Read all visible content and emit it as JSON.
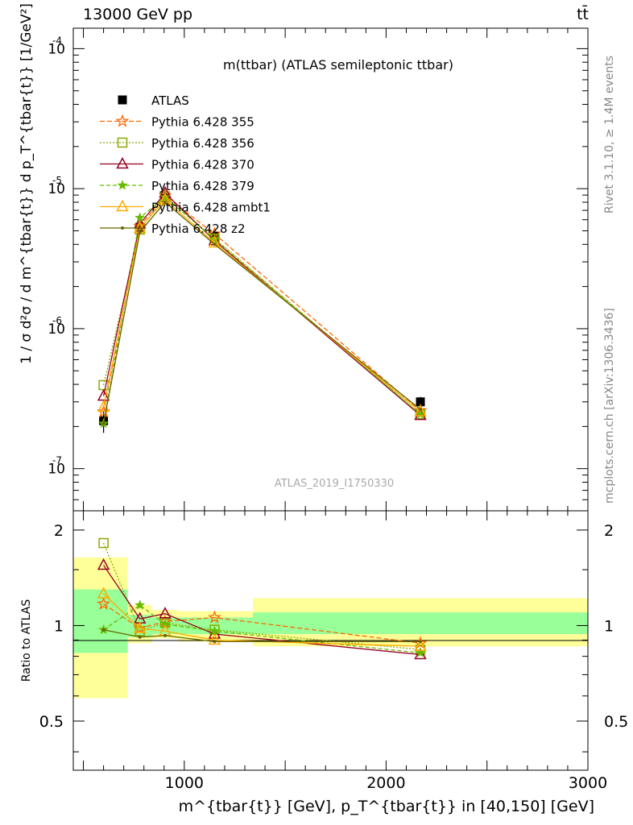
{
  "header": {
    "left": "13000 GeV pp",
    "right": "tt̄"
  },
  "side_labels": {
    "rivet": "Rivet 3.1.10, ≥ 1.4M events",
    "mcplots": "mcplots.cern.ch [arXiv:1306.3436]"
  },
  "watermark": "ATLAS_2019_I1750330",
  "colors": {
    "band_inner": "#99ff99",
    "band_outer": "#ffff99",
    "data": "#000000"
  },
  "chart_data": [
    {
      "type": "line",
      "title": "m(ttbar) (ATLAS semileptonic ttbar)",
      "xlabel": "m^{tbar{t}} [GeV], p_T^{tbar{t}} in [40,150] [GeV]",
      "ylabel": "1 / σ d²σ / d m^{tbar{t}} d p_T^{tbar{t}} [1/GeV²]",
      "yscale": "log",
      "xlim": [
        450,
        3000
      ],
      "ylim": [
        5e-08,
        0.00014
      ],
      "y_ticks": [
        {
          "value": 1e-07,
          "label": "10",
          "exp": "-7"
        },
        {
          "value": 1e-06,
          "label": "10",
          "exp": "-6"
        },
        {
          "value": 1e-05,
          "label": "10",
          "exp": "-5"
        },
        {
          "value": 0.0001,
          "label": "10",
          "exp": "-4"
        }
      ],
      "x": [
        600,
        780,
        905,
        1150,
        2170
      ],
      "x_bins": [
        [
          450,
          720
        ],
        [
          720,
          840
        ],
        [
          840,
          970
        ],
        [
          970,
          1340
        ],
        [
          1340,
          3000
        ]
      ],
      "legend_position": "top-left",
      "series": [
        {
          "name": "ATLAS",
          "color": "#000000",
          "marker": "square-filled",
          "dash": "",
          "values": [
            2.2e-07,
            5.3e-06,
            8.6e-06,
            4.5e-06,
            3e-07
          ],
          "errors": [
            4e-08,
            4e-07,
            5e-07,
            3e-07,
            2.5e-08
          ]
        },
        {
          "name": "Pythia 6.428 355",
          "color": "#ff6600",
          "marker": "star",
          "dash": "6,3",
          "values": [
            2.55e-07,
            5.4e-06,
            8.9e-06,
            4.75e-06,
            2.6e-07
          ]
        },
        {
          "name": "Pythia 6.428 356",
          "color": "#88aa00",
          "marker": "square-open",
          "dash": "2,2",
          "values": [
            3.95e-07,
            5.1e-06,
            8.8e-06,
            4.4e-06,
            2.45e-07
          ]
        },
        {
          "name": "Pythia 6.428 370",
          "color": "#990022",
          "marker": "triangle-open",
          "dash": "",
          "values": [
            3.3e-07,
            5.6e-06,
            9.3e-06,
            4.25e-06,
            2.4e-07
          ]
        },
        {
          "name": "Pythia 6.428 379",
          "color": "#66bb00",
          "marker": "star-small",
          "dash": "5,3",
          "values": [
            2.1e-07,
            6.2e-06,
            8.7e-06,
            4.35e-06,
            2.45e-07
          ]
        },
        {
          "name": "Pythia 6.428 ambt1",
          "color": "#ffaa00",
          "marker": "triangle-open",
          "dash": "",
          "values": [
            2.75e-07,
            5.2e-06,
            8.3e-06,
            4.1e-06,
            2.55e-07
          ]
        },
        {
          "name": "Pythia 6.428 z2",
          "color": "#666600",
          "marker": "dot",
          "dash": "",
          "values": [
            2.1e-07,
            4.9e-06,
            8e-06,
            4e-06,
            2.65e-07
          ]
        }
      ]
    },
    {
      "type": "line",
      "title": "",
      "xlabel": "m^{tbar{t}} [GeV], p_T^{tbar{t}} in [40,150] [GeV]",
      "ylabel": "Ratio to ATLAS",
      "xlim": [
        450,
        3000
      ],
      "ylim": [
        0.35,
        2.3
      ],
      "y_ticks": [
        0.5,
        1,
        2
      ],
      "x_ticks": [
        1000,
        2000,
        3000
      ],
      "x": [
        600,
        780,
        905,
        1150,
        2170
      ],
      "bands": {
        "bins": [
          [
            450,
            720
          ],
          [
            720,
            840
          ],
          [
            840,
            970
          ],
          [
            970,
            1340
          ],
          [
            1340,
            3000
          ]
        ],
        "inner": [
          [
            0.82,
            1.3
          ],
          [
            0.92,
            1.08
          ],
          [
            0.94,
            1.06
          ],
          [
            0.94,
            1.06
          ],
          [
            0.94,
            1.1
          ]
        ],
        "outer": [
          [
            0.59,
            1.64
          ],
          [
            0.88,
            1.16
          ],
          [
            0.91,
            1.12
          ],
          [
            0.89,
            1.11
          ],
          [
            0.86,
            1.22
          ]
        ]
      },
      "series": [
        {
          "name": "Pythia 6.428 355",
          "values": [
            1.17,
            0.98,
            1.03,
            1.06,
            0.88
          ]
        },
        {
          "name": "Pythia 6.428 356",
          "values": [
            1.82,
            0.96,
            1.02,
            0.97,
            0.84
          ]
        },
        {
          "name": "Pythia 6.428 370",
          "values": [
            1.55,
            1.05,
            1.09,
            0.94,
            0.81
          ]
        },
        {
          "name": "Pythia 6.428 379",
          "values": [
            0.97,
            1.16,
            1.01,
            0.96,
            0.82
          ]
        },
        {
          "name": "Pythia 6.428 ambt1",
          "values": [
            1.26,
            0.98,
            0.96,
            0.9,
            0.86
          ]
        },
        {
          "name": "Pythia 6.428 z2",
          "values": [
            0.97,
            0.92,
            0.93,
            0.89,
            0.89
          ]
        }
      ]
    }
  ]
}
